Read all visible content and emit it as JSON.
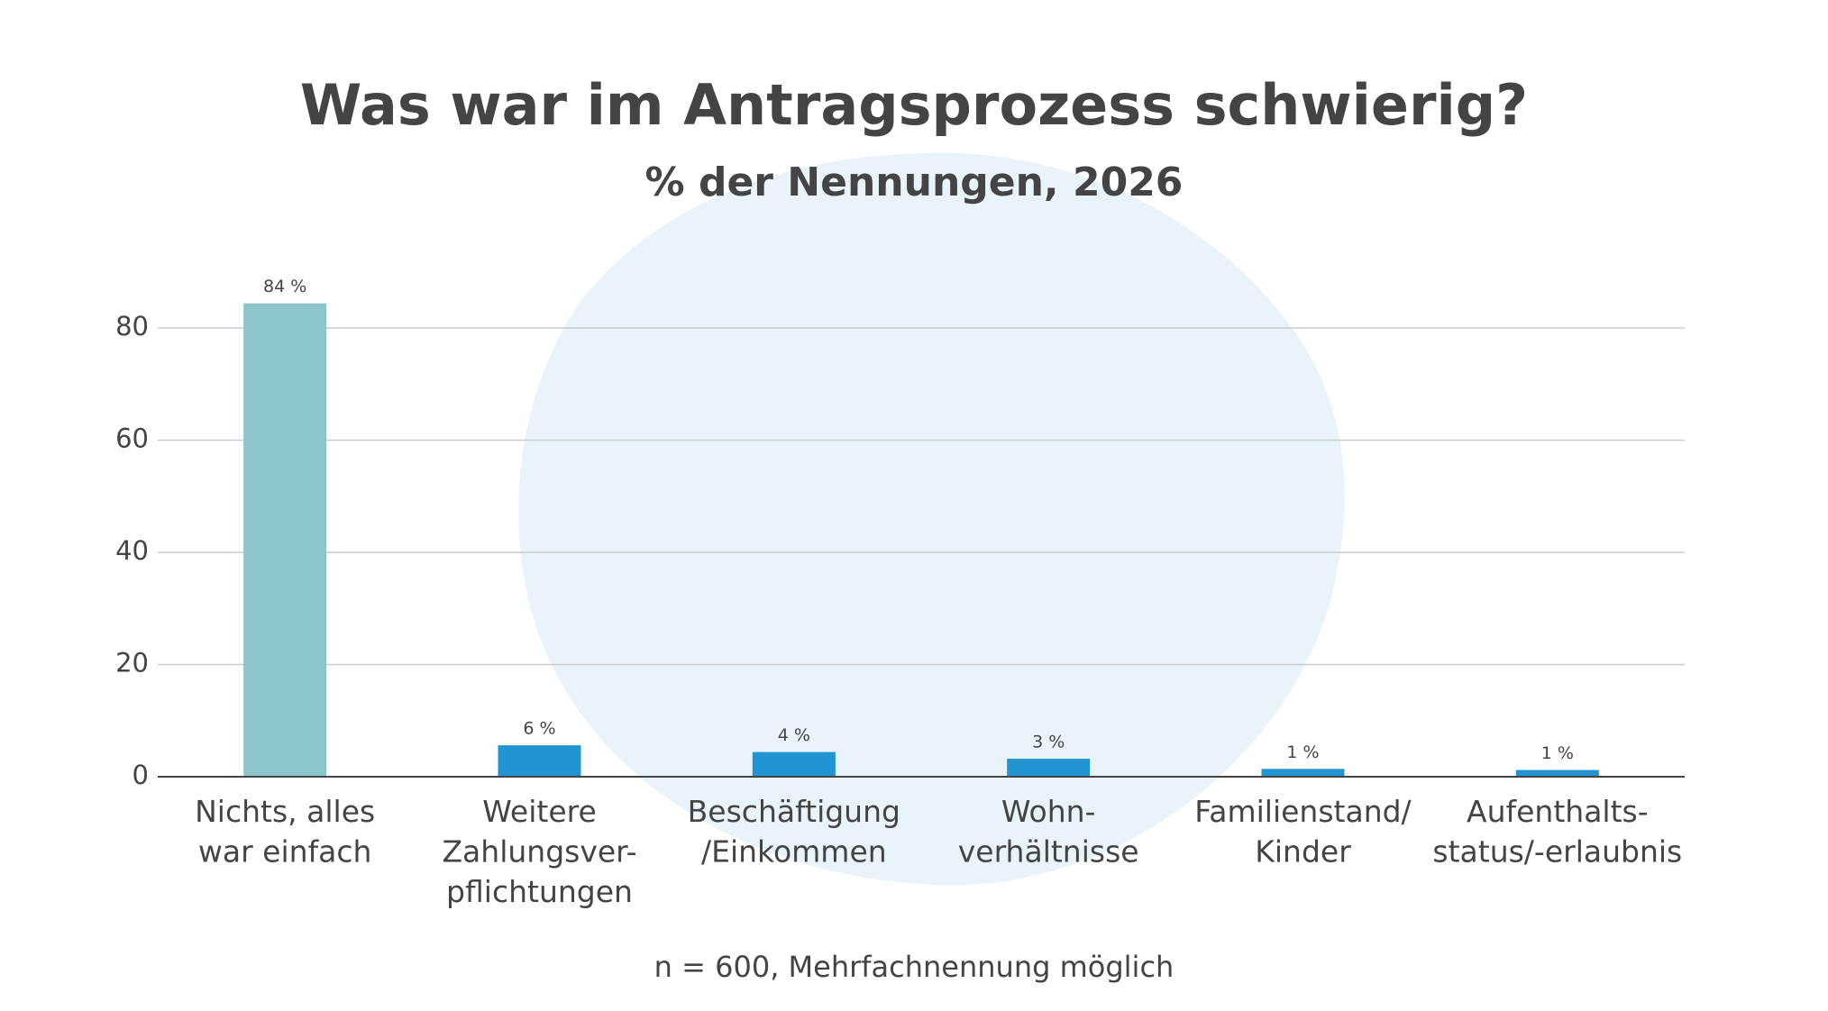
{
  "chart_data": {
    "type": "bar",
    "title": "Was war im Antragsprozess schwierig?",
    "subtitle": "% der Nennungen, 2026",
    "categories": [
      "Nichts, alles\nwar einfach",
      "Weitere\nZahlungsver-\npflichtungen",
      "Beschäftigung\n/Einkommen",
      "Wohn-\nverhältnisse",
      "Familienstand/\nKinder",
      "Aufenthalts-\nstatus/-erlaubnis"
    ],
    "values": [
      84.4,
      5.6,
      4.4,
      3.2,
      1.4,
      1.2
    ],
    "value_labels": [
      "84 %",
      "6 %",
      "4 %",
      "3 %",
      "1 %",
      "1 %"
    ],
    "colors": [
      "#8cc4cc",
      "#2394d2",
      "#2394d2",
      "#2394d2",
      "#2394d2",
      "#2394d2"
    ],
    "ylim": [
      0,
      80
    ],
    "yticks": [
      0,
      20,
      40,
      60,
      80
    ],
    "grid": true,
    "note": "n = 600, Mehrfachnennung möglich"
  }
}
